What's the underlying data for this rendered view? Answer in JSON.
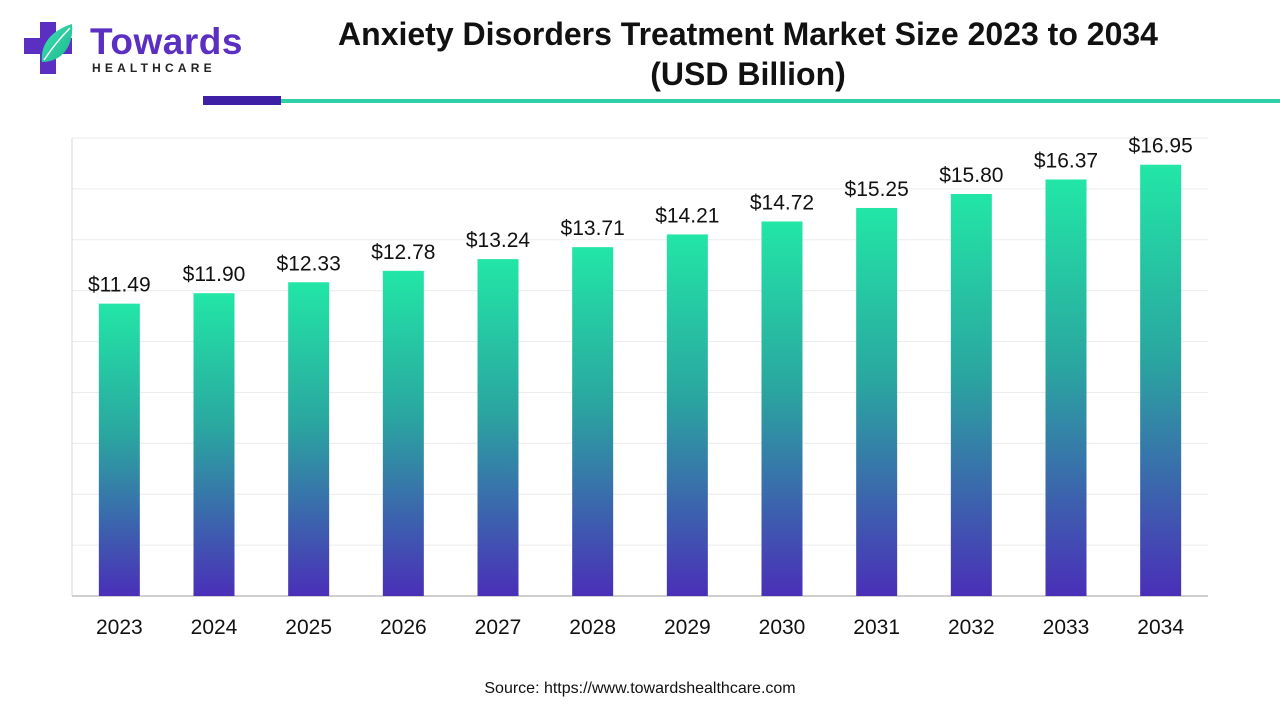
{
  "brand": {
    "name": "Towards",
    "tagline": "HEALTHCARE",
    "colors": {
      "purple": "#5b2fc2",
      "teal": "#2fd0a8",
      "dark_rule": "#3e20a6"
    }
  },
  "source_text": "Source: https://www.towardshealthcare.com",
  "chart_data": {
    "type": "bar",
    "title_line1": "Anxiety Disorders Treatment Market Size 2023 to 2034",
    "title_line2": "(USD Billion)",
    "categories": [
      "2023",
      "2024",
      "2025",
      "2026",
      "2027",
      "2028",
      "2029",
      "2030",
      "2031",
      "2032",
      "2033",
      "2034"
    ],
    "values": [
      11.49,
      11.9,
      12.33,
      12.78,
      13.24,
      13.71,
      14.21,
      14.72,
      15.25,
      15.8,
      16.37,
      16.95
    ],
    "labels": [
      "$11.49",
      "$11.90",
      "$12.33",
      "$12.78",
      "$13.24",
      "$13.71",
      "$14.21",
      "$14.72",
      "$15.25",
      "$15.80",
      "$16.37",
      "$16.95"
    ],
    "ylim": [
      0,
      18
    ],
    "grid": true,
    "bar_gradient": {
      "top": "#22e6a6",
      "bottom": "#4a2fb8"
    }
  }
}
